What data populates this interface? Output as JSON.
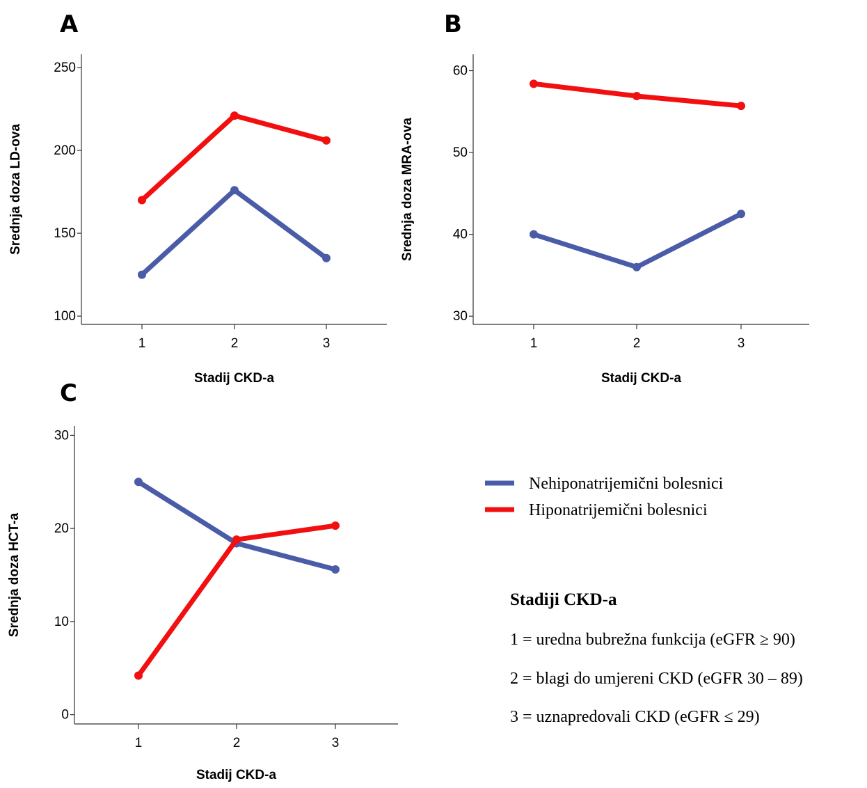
{
  "panels": [
    {
      "letter": "A"
    },
    {
      "letter": "B"
    },
    {
      "letter": "C"
    }
  ],
  "legend": {
    "entries": [
      {
        "label": "Nehiponatrijemični bolesnici",
        "color": "#4a5ba8"
      },
      {
        "label": "Hiponatrijemični bolesnici",
        "color": "#f20f10"
      }
    ]
  },
  "note": {
    "title": "Stadiji CKD-a",
    "lines": [
      "1 = uredna bubrežna funkcija (eGFR ≥ 90)",
      "2 = blagi do umjereni CKD (eGFR 30 – 89)",
      "3 = uznapredovali CKD (eGFR ≤ 29)"
    ]
  },
  "chart_data": [
    {
      "type": "line",
      "panel": "A",
      "xlabel": "Stadij CKD-a",
      "ylabel": "Srednja doza LD-ova",
      "x": [
        "1",
        "2",
        "3"
      ],
      "ylim": [
        95,
        258
      ],
      "yticks": [
        100,
        150,
        200,
        250
      ],
      "series": [
        {
          "name": "Nehiponatrijemični bolesnici",
          "color": "#4a5ba8",
          "values": [
            125,
            176,
            135
          ]
        },
        {
          "name": "Hiponatrijemični bolesnici",
          "color": "#f20f10",
          "values": [
            170,
            221,
            206
          ]
        }
      ]
    },
    {
      "type": "line",
      "panel": "B",
      "xlabel": "Stadij CKD-a",
      "ylabel": "Srednja doza MRA-ova",
      "x": [
        "1",
        "2",
        "3"
      ],
      "ylim": [
        29,
        62
      ],
      "yticks": [
        30,
        40,
        50,
        60
      ],
      "series": [
        {
          "name": "Nehiponatrijemični bolesnici",
          "color": "#4a5ba8",
          "values": [
            40,
            36,
            42.5
          ]
        },
        {
          "name": "Hiponatrijemični bolesnici",
          "color": "#f20f10",
          "values": [
            58.4,
            56.9,
            55.7
          ]
        }
      ]
    },
    {
      "type": "line",
      "panel": "C",
      "xlabel": "Stadij CKD-a",
      "ylabel": "Srednja doza HCT-a",
      "x": [
        "1",
        "2",
        "3"
      ],
      "ylim": [
        -1,
        31
      ],
      "yticks": [
        0,
        10,
        20,
        30
      ],
      "series": [
        {
          "name": "Nehiponatrijemični bolesnici",
          "color": "#4a5ba8",
          "values": [
            25,
            18.4,
            15.6
          ]
        },
        {
          "name": "Hiponatrijemični bolesnici",
          "color": "#f20f10",
          "values": [
            4.2,
            18.8,
            20.3
          ]
        }
      ]
    }
  ]
}
